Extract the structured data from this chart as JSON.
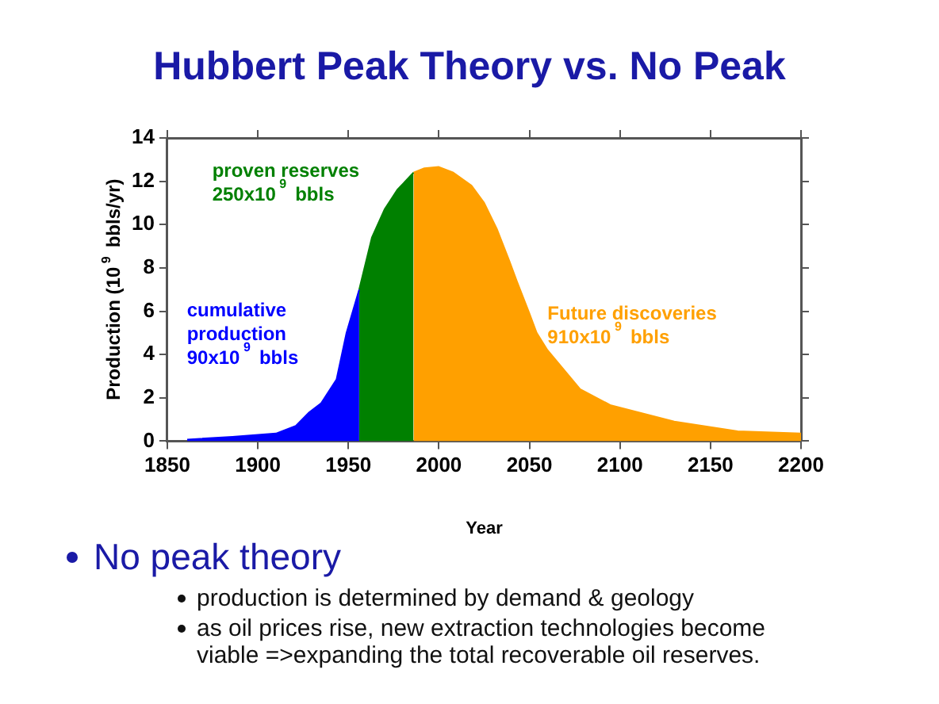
{
  "chart_data": {
    "type": "area",
    "title": "Hubbert Peak Theory vs. No Peak",
    "xlabel": "Year",
    "ylabel": "Production (10$^{9}$ bbls/yr)",
    "xlim": [
      1850,
      2200
    ],
    "xticks": [
      1850,
      1900,
      1950,
      2000,
      2050,
      2100,
      2150,
      2200
    ],
    "ylim": [
      0,
      14
    ],
    "yticks": [
      0,
      2,
      4,
      6,
      8,
      10,
      12,
      14
    ],
    "grid": false,
    "legend": false,
    "series": [
      {
        "color": "#0000ff",
        "x": [
          1861,
          1886,
          1910,
          1921,
          1928,
          1935,
          1943.5,
          1949,
          1956
        ],
        "values": [
          0.07,
          0.2,
          0.35,
          0.7,
          1.3,
          1.75,
          2.85,
          5.0,
          7.0
        ]
      },
      {
        "color": "#008000",
        "x": [
          1956,
          1963,
          1970,
          1977,
          1986
        ],
        "values": [
          7.0,
          9.4,
          10.7,
          11.6,
          12.4
        ]
      },
      {
        "color": "#ffa000",
        "x": [
          1986,
          1992,
          2000,
          2008,
          2018,
          2025,
          2032,
          2039,
          2043,
          2050,
          2054,
          2060,
          2078,
          2095,
          2130,
          2165,
          2200
        ],
        "values": [
          12.4,
          12.6,
          12.66,
          12.4,
          11.8,
          11.0,
          9.8,
          8.3,
          7.4,
          5.9,
          5.0,
          4.2,
          2.4,
          1.65,
          0.9,
          0.45,
          0.35
        ]
      }
    ],
    "annotations": [
      "cumulative\nproduction\n90x10$^{9}$ bbls",
      "proven reserves\n250x10$^{9}$ bbls",
      "Future discoveries\n910x10$^{9}$ bbls",
      "No peak theory",
      "production is determined by demand & geology",
      "as oil prices rise, new extraction technologies become viable =>expanding the total recoverable oil reserves."
    ]
  }
}
